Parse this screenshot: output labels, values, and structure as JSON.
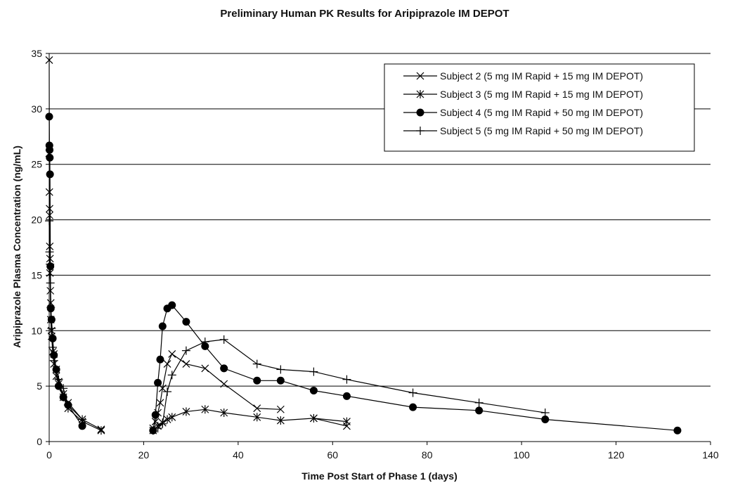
{
  "chart_data": {
    "type": "line",
    "title": "Preliminary Human PK Results for Aripiprazole IM DEPOT",
    "xlabel": "Time Post Start of Phase 1 (days)",
    "ylabel": "Aripiprazole Plasma Concentration (ng/mL)",
    "xlim": [
      0,
      140
    ],
    "ylim": [
      0,
      35
    ],
    "xticks": [
      0,
      20,
      40,
      60,
      80,
      100,
      120,
      140
    ],
    "yticks": [
      0,
      5,
      10,
      15,
      20,
      25,
      30,
      35
    ],
    "grid": "horizontal major gridlines",
    "legend_position": "top-right",
    "series": [
      {
        "name": "Subject 2 (5 mg IM Rapid + 15 mg IM DEPOT)",
        "marker": "x",
        "segments": [
          {
            "x": [
              0.0,
              0.04,
              0.08,
              0.12,
              0.17,
              0.25,
              0.33,
              0.5,
              0.75,
              1.0,
              1.5,
              2.0,
              3.0,
              4.0,
              7.0,
              11.0
            ],
            "y": [
              34.4,
              22.5,
              20.4,
              17.6,
              15.2,
              13.6,
              11.0,
              9.5,
              8.1,
              7.0,
              5.9,
              5.2,
              4.3,
              3.5,
              2.0,
              1.1
            ]
          },
          {
            "x": [
              22.0,
              22.5,
              23.0,
              23.5,
              24.0,
              25.0,
              26.0,
              29.0,
              33.0,
              37.0,
              44.0,
              49.0
            ],
            "y": [
              1.2,
              1.8,
              2.6,
              3.5,
              4.8,
              7.0,
              7.9,
              7.0,
              6.6,
              5.2,
              3.0,
              2.9
            ]
          },
          {
            "x": [
              56.0,
              63.0
            ],
            "y": [
              2.1,
              1.4
            ]
          }
        ]
      },
      {
        "name": "Subject 3 (5 mg IM Rapid + 15 mg IM DEPOT)",
        "marker": "asterisk",
        "segments": [
          {
            "x": [
              0.0,
              0.08,
              0.17,
              0.33,
              0.5,
              1.0,
              1.5,
              2.0,
              3.0,
              4.0,
              7.0,
              11.0
            ],
            "y": [
              26.0,
              21.0,
              16.5,
              12.5,
              10.0,
              7.9,
              6.5,
              5.4,
              4.0,
              3.0,
              1.8,
              1.0
            ]
          },
          {
            "x": [
              22.0,
              23.0,
              24.0,
              25.0,
              26.0,
              29.0,
              33.0,
              37.0,
              44.0,
              49.0,
              56.0,
              63.0
            ],
            "y": [
              1.0,
              1.4,
              1.7,
              2.0,
              2.2,
              2.7,
              2.9,
              2.6,
              2.2,
              1.9,
              2.1,
              1.8
            ]
          }
        ]
      },
      {
        "name": "Subject 4 (5 mg IM Rapid + 50 mg IM DEPOT)",
        "marker": "circle",
        "segments": [
          {
            "x": [
              0.0,
              0.04,
              0.08,
              0.12,
              0.17,
              0.25,
              0.33,
              0.5,
              0.75,
              1.0,
              1.5,
              2.0,
              3.0,
              4.0,
              7.0
            ],
            "y": [
              29.3,
              26.7,
              26.3,
              25.6,
              24.1,
              15.8,
              12.0,
              11.0,
              9.3,
              7.8,
              6.5,
              5.0,
              4.0,
              3.3,
              1.4
            ]
          },
          {
            "x": [
              22.0,
              22.5,
              23.0,
              23.5,
              24.0,
              25.0,
              26.0,
              29.0,
              33.0,
              37.0,
              44.0,
              49.0,
              56.0,
              63.0,
              77.0,
              91.0,
              105.0,
              133.0
            ],
            "y": [
              1.0,
              2.4,
              5.3,
              7.4,
              10.4,
              12.0,
              12.3,
              10.8,
              8.6,
              6.6,
              5.5,
              5.5,
              4.6,
              4.1,
              3.1,
              2.8,
              2.0,
              1.0
            ]
          }
        ]
      },
      {
        "name": "Subject 5 (5 mg IM Rapid + 50 mg IM DEPOT)",
        "marker": "plus",
        "segments": [
          {
            "x": [
              0.0,
              0.08,
              0.17,
              0.25,
              0.33,
              0.5,
              0.75,
              1.0,
              2.0,
              3.0,
              4.0,
              7.0
            ],
            "y": [
              19.9,
              17.1,
              16.0,
              14.3,
              12.1,
              10.2,
              8.5,
              7.3,
              5.6,
              4.8,
              3.3,
              2.0
            ]
          },
          {
            "x": [
              23.0,
              24.0,
              25.0,
              26.0,
              29.0,
              33.0,
              37.0,
              44.0,
              49.0,
              56.0,
              63.0,
              77.0,
              91.0,
              105.0
            ],
            "y": [
              1.2,
              1.6,
              4.5,
              6.0,
              8.2,
              9.0,
              9.2,
              7.0,
              6.5,
              6.3,
              5.6,
              4.4,
              3.5,
              2.6
            ]
          }
        ]
      }
    ]
  }
}
